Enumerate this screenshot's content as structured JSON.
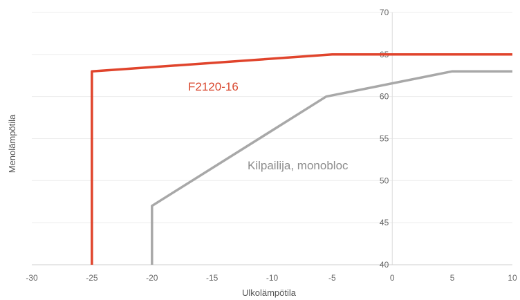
{
  "chart_data": {
    "type": "line",
    "xlabel": "Ulkolämpötila",
    "ylabel": "Menolämpötila",
    "xlim": [
      -30,
      10
    ],
    "ylim": [
      40,
      70
    ],
    "x_ticks": [
      "-30",
      "-25",
      "-20",
      "-15",
      "-10",
      "-5",
      "0",
      "5",
      "10"
    ],
    "y_ticks": [
      "40",
      "45",
      "50",
      "55",
      "60",
      "65",
      "70"
    ],
    "grid": true,
    "legend": "none",
    "series": [
      {
        "name": "F2120-16",
        "color": "#e0442c",
        "x": [
          -25,
          -25,
          -5,
          10
        ],
        "y": [
          40,
          63,
          65,
          65
        ]
      },
      {
        "name": "Kilpailija, monobloc",
        "color": "#a8a8a8",
        "x": [
          -20,
          -20,
          -5.5,
          5,
          10
        ],
        "y": [
          40,
          47,
          60,
          63,
          63
        ]
      }
    ]
  }
}
